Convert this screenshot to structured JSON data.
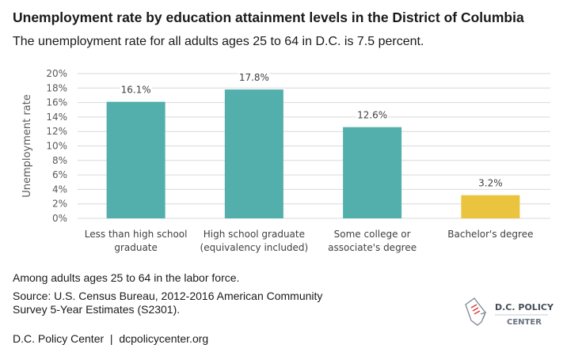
{
  "title": "Unemployment rate by education attainment levels in the District of Columbia",
  "subtitle": "The unemployment rate for all adults ages 25 to 64 in D.C. is 7.5 percent.",
  "chart_data": {
    "type": "bar",
    "categories": [
      [
        "Less than high school",
        "graduate"
      ],
      [
        "High school graduate",
        "(equivalency included)"
      ],
      [
        "Some college or",
        "associate's degree"
      ],
      [
        "Bachelor's degree",
        ""
      ]
    ],
    "values": [
      16.1,
      17.8,
      12.6,
      3.2
    ],
    "data_labels": [
      "16.1%",
      "17.8%",
      "12.6%",
      "3.2%"
    ],
    "colors": [
      "#52afac",
      "#52afac",
      "#52afac",
      "#eac43e"
    ],
    "ylabel": "Unemployment rate",
    "ylim": [
      0,
      20
    ],
    "yticks": [
      "0%",
      "2%",
      "4%",
      "6%",
      "8%",
      "10%",
      "12%",
      "14%",
      "16%",
      "18%",
      "20%"
    ],
    "grid": true
  },
  "notes": {
    "universe": "Among adults ages 25 to 64 in the labor force.",
    "source_line1": "Source: U.S. Census Bureau, 2012-2016 American Community",
    "source_line2": "Survey 5-Year Estimates (S2301).",
    "credit": "D.C. Policy Center  |  dcpolicycenter.org"
  },
  "logo": {
    "line1": "D.C. POLICY",
    "line2": "CENTER"
  }
}
